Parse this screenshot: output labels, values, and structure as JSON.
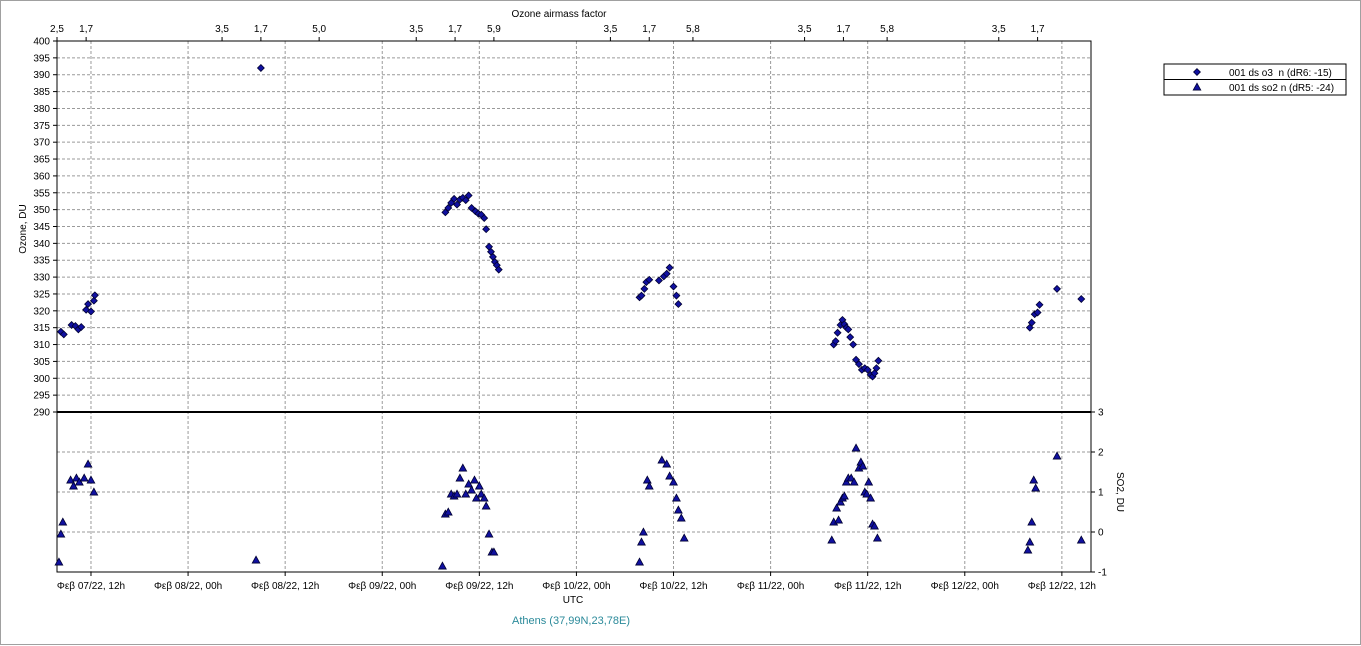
{
  "chart_data": {
    "type": "scatter",
    "top_axis_label": "Ozone airmass factor",
    "top_ticks": [
      {
        "t": 0.0,
        "label": "2,5"
      },
      {
        "t": 0.3,
        "label": "1,7"
      },
      {
        "t": 1.7,
        "label": "3,5"
      },
      {
        "t": 2.1,
        "label": "1,7"
      },
      {
        "t": 2.7,
        "label": "5,0"
      },
      {
        "t": 3.7,
        "label": "3,5"
      },
      {
        "t": 4.1,
        "label": "1,7"
      },
      {
        "t": 4.5,
        "label": "5,9"
      },
      {
        "t": 5.7,
        "label": "3,5"
      },
      {
        "t": 6.1,
        "label": "1,7"
      },
      {
        "t": 6.55,
        "label": "5,8"
      },
      {
        "t": 7.7,
        "label": "3,5"
      },
      {
        "t": 8.1,
        "label": "1,7"
      },
      {
        "t": 8.55,
        "label": "5,8"
      },
      {
        "t": 9.7,
        "label": "3,5"
      },
      {
        "t": 10.1,
        "label": "1,7"
      }
    ],
    "x_ticks": [
      {
        "t": 0.35,
        "label": "Φεβ 07/22, 12h"
      },
      {
        "t": 1.35,
        "label": "Φεβ 08/22, 00h"
      },
      {
        "t": 2.35,
        "label": "Φεβ 08/22, 12h"
      },
      {
        "t": 3.35,
        "label": "Φεβ 09/22, 00h"
      },
      {
        "t": 4.35,
        "label": "Φεβ 09/22, 12h"
      },
      {
        "t": 5.35,
        "label": "Φεβ 10/22, 00h"
      },
      {
        "t": 6.35,
        "label": "Φεβ 10/22, 12h"
      },
      {
        "t": 7.35,
        "label": "Φεβ 11/22, 00h"
      },
      {
        "t": 8.35,
        "label": "Φεβ 11/22, 12h"
      },
      {
        "t": 9.35,
        "label": "Φεβ 12/22, 00h"
      },
      {
        "t": 10.35,
        "label": "Φεβ 12/22, 12h"
      }
    ],
    "x_range": [
      0,
      10.65
    ],
    "xlabel": "UTC",
    "location": "Athens (37,99N,23,78E)",
    "ozone_axis": {
      "label": "Ozone, DU",
      "min": 290,
      "max": 400,
      "step": 5
    },
    "so2_axis": {
      "label": "SO2, DU",
      "min": -1,
      "max": 3,
      "step": 1
    },
    "grid": true,
    "legend_position": "right-top",
    "series": [
      {
        "name": "001 ds o3  n (dR6: -15)",
        "marker": "diamond",
        "axis": "ozone",
        "color": "#1010a0",
        "points": [
          [
            0.04,
            313.8
          ],
          [
            0.07,
            313.0
          ],
          [
            0.15,
            315.8
          ],
          [
            0.19,
            315.5
          ],
          [
            0.22,
            314.5
          ],
          [
            0.25,
            315.2
          ],
          [
            0.3,
            320.3
          ],
          [
            0.32,
            322.0
          ],
          [
            0.35,
            319.8
          ],
          [
            0.38,
            323.0
          ],
          [
            0.39,
            324.6
          ],
          [
            2.1,
            392.0
          ],
          [
            4.0,
            349.2
          ],
          [
            4.03,
            350.5
          ],
          [
            4.06,
            352.0
          ],
          [
            4.09,
            353.2
          ],
          [
            4.12,
            351.5
          ],
          [
            4.15,
            353.0
          ],
          [
            4.18,
            353.5
          ],
          [
            4.21,
            352.8
          ],
          [
            4.24,
            354.2
          ],
          [
            4.27,
            350.5
          ],
          [
            4.31,
            349.5
          ],
          [
            4.34,
            348.8
          ],
          [
            4.37,
            348.5
          ],
          [
            4.4,
            347.5
          ],
          [
            4.42,
            344.2
          ],
          [
            4.45,
            339.0
          ],
          [
            4.47,
            337.5
          ],
          [
            4.49,
            336.0
          ],
          [
            4.51,
            334.5
          ],
          [
            4.53,
            333.5
          ],
          [
            4.55,
            332.2
          ],
          [
            6.0,
            324.0
          ],
          [
            6.02,
            324.5
          ],
          [
            6.05,
            326.5
          ],
          [
            6.07,
            328.5
          ],
          [
            6.1,
            329.2
          ],
          [
            6.2,
            329.0
          ],
          [
            6.25,
            330.2
          ],
          [
            6.28,
            331.0
          ],
          [
            6.31,
            332.8
          ],
          [
            6.35,
            327.2
          ],
          [
            6.38,
            324.5
          ],
          [
            6.4,
            322.0
          ],
          [
            8.0,
            310.0
          ],
          [
            8.02,
            311.0
          ],
          [
            8.04,
            313.5
          ],
          [
            8.07,
            315.8
          ],
          [
            8.09,
            317.3
          ],
          [
            8.11,
            316.0
          ],
          [
            8.13,
            315.0
          ],
          [
            8.15,
            314.5
          ],
          [
            8.17,
            312.2
          ],
          [
            8.2,
            310.0
          ],
          [
            8.23,
            305.5
          ],
          [
            8.26,
            304.2
          ],
          [
            8.29,
            302.5
          ],
          [
            8.32,
            303.0
          ],
          [
            8.35,
            302.5
          ],
          [
            8.38,
            301.0
          ],
          [
            8.4,
            300.5
          ],
          [
            8.42,
            301.5
          ],
          [
            8.44,
            303.0
          ],
          [
            8.46,
            305.2
          ],
          [
            10.02,
            315.0
          ],
          [
            10.04,
            316.5
          ],
          [
            10.07,
            319.0
          ],
          [
            10.1,
            319.5
          ],
          [
            10.12,
            321.8
          ],
          [
            10.3,
            326.5
          ],
          [
            10.55,
            323.5
          ]
        ]
      },
      {
        "name": "001 ds so2 n (dR5: -24)",
        "marker": "triangle",
        "axis": "so2",
        "color": "#1010a0",
        "points": [
          [
            0.02,
            -0.75
          ],
          [
            0.04,
            -0.05
          ],
          [
            0.06,
            0.25
          ],
          [
            0.14,
            1.3
          ],
          [
            0.17,
            1.15
          ],
          [
            0.2,
            1.35
          ],
          [
            0.23,
            1.25
          ],
          [
            0.28,
            1.35
          ],
          [
            0.32,
            1.7
          ],
          [
            0.35,
            1.3
          ],
          [
            0.38,
            1.0
          ],
          [
            2.05,
            -0.7
          ],
          [
            3.97,
            -0.85
          ],
          [
            4.0,
            0.45
          ],
          [
            4.03,
            0.5
          ],
          [
            4.06,
            0.95
          ],
          [
            4.09,
            0.9
          ],
          [
            4.12,
            0.95
          ],
          [
            4.15,
            1.35
          ],
          [
            4.18,
            1.6
          ],
          [
            4.21,
            0.95
          ],
          [
            4.24,
            1.2
          ],
          [
            4.27,
            1.05
          ],
          [
            4.3,
            1.3
          ],
          [
            4.32,
            0.85
          ],
          [
            4.35,
            1.15
          ],
          [
            4.37,
            0.95
          ],
          [
            4.4,
            0.85
          ],
          [
            4.42,
            0.65
          ],
          [
            4.45,
            -0.05
          ],
          [
            4.48,
            -0.5
          ],
          [
            4.5,
            -0.5
          ],
          [
            6.0,
            -0.75
          ],
          [
            6.02,
            -0.25
          ],
          [
            6.04,
            0.0
          ],
          [
            6.08,
            1.3
          ],
          [
            6.1,
            1.15
          ],
          [
            6.23,
            1.8
          ],
          [
            6.28,
            1.7
          ],
          [
            6.31,
            1.4
          ],
          [
            6.35,
            1.25
          ],
          [
            6.38,
            0.85
          ],
          [
            6.4,
            0.55
          ],
          [
            6.43,
            0.35
          ],
          [
            6.46,
            -0.15
          ],
          [
            7.98,
            -0.2
          ],
          [
            8.0,
            0.25
          ],
          [
            8.03,
            0.6
          ],
          [
            8.05,
            0.3
          ],
          [
            8.07,
            0.75
          ],
          [
            8.09,
            0.85
          ],
          [
            8.11,
            0.9
          ],
          [
            8.13,
            1.25
          ],
          [
            8.15,
            1.35
          ],
          [
            8.18,
            1.35
          ],
          [
            8.21,
            1.25
          ],
          [
            8.23,
            2.1
          ],
          [
            8.26,
            1.6
          ],
          [
            8.28,
            1.75
          ],
          [
            8.3,
            1.65
          ],
          [
            8.32,
            1.0
          ],
          [
            8.34,
            0.95
          ],
          [
            8.36,
            1.25
          ],
          [
            8.38,
            0.85
          ],
          [
            8.4,
            0.2
          ],
          [
            8.42,
            0.15
          ],
          [
            8.45,
            -0.15
          ],
          [
            10.0,
            -0.45
          ],
          [
            10.02,
            -0.25
          ],
          [
            10.04,
            0.25
          ],
          [
            10.06,
            1.3
          ],
          [
            10.08,
            1.1
          ],
          [
            10.3,
            1.9
          ],
          [
            10.55,
            -0.2
          ]
        ]
      }
    ]
  }
}
